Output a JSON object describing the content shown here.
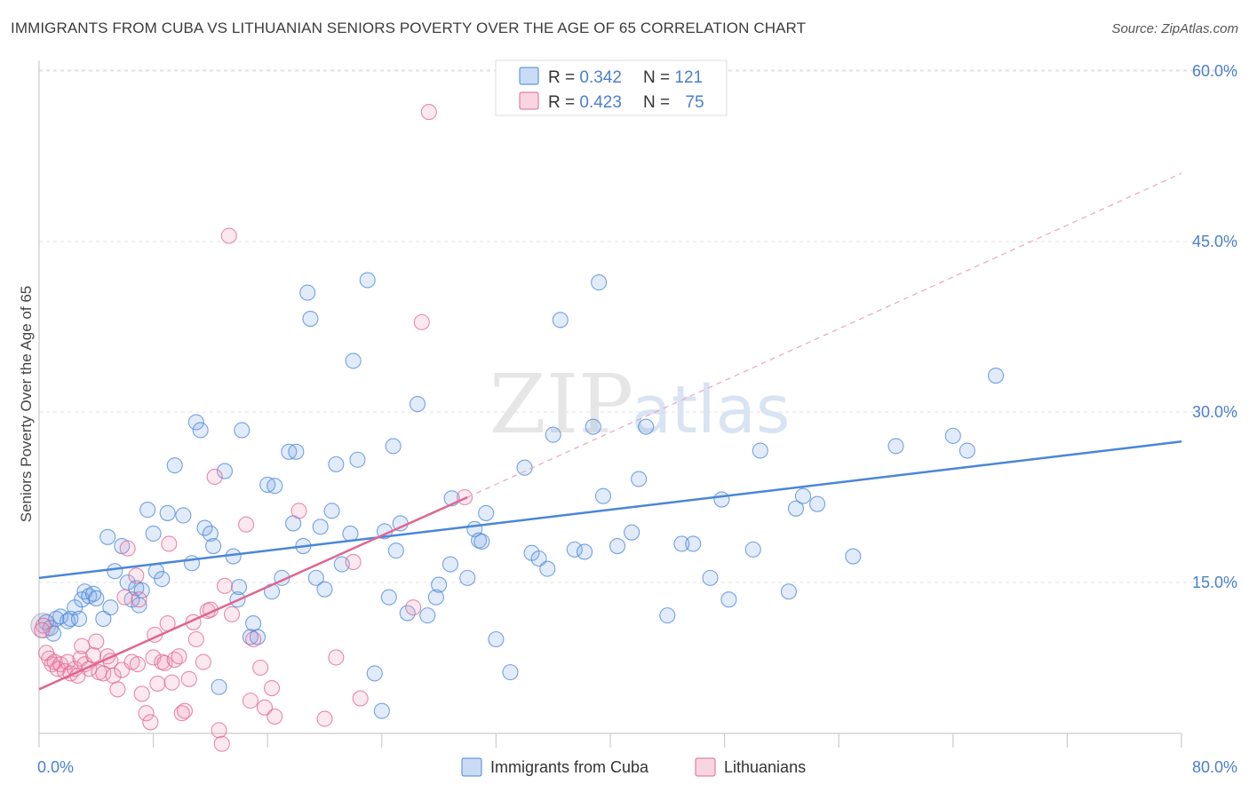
{
  "title": "IMMIGRANTS FROM CUBA VS LITHUANIAN SENIORS POVERTY OVER THE AGE OF 65 CORRELATION CHART",
  "source": "Source: ZipAtlas.com",
  "watermark": {
    "zip": "ZIP",
    "atlas": "atlas"
  },
  "colors": {
    "blue": "#4a86d8",
    "blue_fill": "rgba(120,165,230,0.22)",
    "pink": "#e0668f",
    "pink_fill": "rgba(240,150,180,0.22)",
    "axis_label": "#4a7fd0"
  },
  "legend": {
    "rows": [
      {
        "r_label": "R = ",
        "r_value": "0.342",
        "n_label": "N = ",
        "n_value": "121"
      },
      {
        "r_label": "R = ",
        "r_value": "0.423",
        "n_label": "N = ",
        "n_value": "75"
      }
    ]
  },
  "chart_data": {
    "type": "scatter",
    "title": "IMMIGRANTS FROM CUBA VS LITHUANIAN SENIORS POVERTY OVER THE AGE OF 65 CORRELATION CHART",
    "xlabel": "",
    "ylabel": "Seniors Poverty Over the Age of 65",
    "xlim": [
      0,
      80
    ],
    "ylim": [
      0,
      63
    ],
    "x_tick_labels": [
      "0.0%",
      "80.0%"
    ],
    "y_ticks": [
      15,
      30,
      45,
      60
    ],
    "y_tick_labels": [
      "15.0%",
      "30.0%",
      "45.0%",
      "60.0%"
    ],
    "grid": true,
    "legend_position": "top-center",
    "series": [
      {
        "name": "Immigrants from Cuba",
        "color": "#4a86d8",
        "r": 0.342,
        "n": 121,
        "trend": {
          "x": [
            0,
            80
          ],
          "y": [
            15.4,
            27.4
          ]
        },
        "points": [
          [
            0.5,
            11.5
          ],
          [
            0.8,
            11.0
          ],
          [
            1.0,
            10.5
          ],
          [
            1.2,
            11.8
          ],
          [
            1.5,
            12.0
          ],
          [
            2.0,
            11.6
          ],
          [
            2.2,
            11.8
          ],
          [
            2.5,
            12.8
          ],
          [
            2.8,
            11.8
          ],
          [
            3.0,
            13.5
          ],
          [
            3.2,
            14.2
          ],
          [
            3.5,
            13.8
          ],
          [
            3.8,
            14.0
          ],
          [
            4.0,
            13.6
          ],
          [
            4.5,
            11.8
          ],
          [
            4.8,
            19.0
          ],
          [
            5.0,
            12.8
          ],
          [
            5.3,
            16.0
          ],
          [
            5.8,
            18.2
          ],
          [
            6.2,
            15.0
          ],
          [
            6.5,
            13.5
          ],
          [
            6.8,
            14.5
          ],
          [
            7.0,
            13.0
          ],
          [
            7.2,
            14.3
          ],
          [
            7.6,
            21.4
          ],
          [
            8.0,
            19.3
          ],
          [
            8.2,
            16.0
          ],
          [
            8.6,
            15.3
          ],
          [
            9.0,
            21.1
          ],
          [
            9.5,
            25.3
          ],
          [
            10.1,
            20.9
          ],
          [
            10.7,
            16.7
          ],
          [
            11.0,
            29.1
          ],
          [
            11.3,
            28.4
          ],
          [
            11.6,
            19.8
          ],
          [
            12.0,
            19.3
          ],
          [
            12.2,
            18.2
          ],
          [
            12.6,
            5.8
          ],
          [
            13.0,
            24.8
          ],
          [
            13.6,
            17.3
          ],
          [
            13.9,
            13.5
          ],
          [
            14.0,
            14.6
          ],
          [
            14.2,
            28.4
          ],
          [
            14.8,
            10.2
          ],
          [
            15.0,
            11.4
          ],
          [
            15.3,
            10.2
          ],
          [
            16.0,
            23.6
          ],
          [
            16.3,
            14.2
          ],
          [
            16.5,
            23.5
          ],
          [
            17.0,
            15.4
          ],
          [
            17.5,
            26.5
          ],
          [
            17.8,
            20.2
          ],
          [
            18.0,
            26.5
          ],
          [
            18.5,
            18.2
          ],
          [
            18.8,
            40.5
          ],
          [
            19.0,
            38.2
          ],
          [
            19.4,
            15.4
          ],
          [
            19.7,
            19.9
          ],
          [
            20.0,
            14.4
          ],
          [
            20.5,
            21.3
          ],
          [
            20.8,
            25.4
          ],
          [
            21.2,
            16.6
          ],
          [
            21.8,
            19.3
          ],
          [
            22.0,
            34.5
          ],
          [
            22.3,
            25.8
          ],
          [
            23.0,
            41.6
          ],
          [
            23.5,
            7.0
          ],
          [
            24.0,
            3.7
          ],
          [
            24.2,
            19.5
          ],
          [
            24.5,
            13.7
          ],
          [
            24.8,
            27.0
          ],
          [
            25.0,
            17.8
          ],
          [
            25.3,
            20.2
          ],
          [
            25.8,
            12.3
          ],
          [
            26.5,
            30.7
          ],
          [
            27.2,
            12.1
          ],
          [
            27.8,
            13.7
          ],
          [
            28.0,
            14.8
          ],
          [
            28.8,
            16.6
          ],
          [
            28.9,
            22.4
          ],
          [
            30.0,
            15.4
          ],
          [
            30.5,
            19.7
          ],
          [
            30.8,
            18.7
          ],
          [
            31.0,
            18.6
          ],
          [
            31.3,
            21.1
          ],
          [
            32.0,
            10.0
          ],
          [
            33.0,
            7.1
          ],
          [
            34.0,
            25.1
          ],
          [
            34.5,
            17.6
          ],
          [
            35.0,
            17.1
          ],
          [
            35.6,
            16.2
          ],
          [
            36.0,
            28.0
          ],
          [
            36.5,
            38.1
          ],
          [
            37.5,
            17.9
          ],
          [
            38.2,
            17.7
          ],
          [
            38.8,
            28.7
          ],
          [
            39.2,
            41.4
          ],
          [
            39.5,
            22.6
          ],
          [
            40.5,
            18.2
          ],
          [
            41.5,
            19.4
          ],
          [
            42.0,
            24.1
          ],
          [
            42.5,
            28.7
          ],
          [
            44.0,
            12.1
          ],
          [
            45.0,
            18.4
          ],
          [
            45.8,
            18.4
          ],
          [
            47.0,
            15.4
          ],
          [
            47.8,
            22.3
          ],
          [
            48.3,
            13.5
          ],
          [
            50.0,
            17.9
          ],
          [
            50.5,
            26.6
          ],
          [
            52.5,
            14.2
          ],
          [
            53.0,
            21.5
          ],
          [
            53.5,
            22.6
          ],
          [
            54.5,
            21.9
          ],
          [
            57.0,
            17.3
          ],
          [
            60.0,
            27.0
          ],
          [
            64.0,
            27.9
          ],
          [
            65.0,
            26.6
          ],
          [
            67.0,
            33.2
          ]
        ]
      },
      {
        "name": "Lithuanians",
        "color": "#e0668f",
        "r": 0.423,
        "n": 75,
        "trend": {
          "x": [
            0,
            30
          ],
          "y": [
            5.6,
            22.5
          ]
        },
        "trend_extension": {
          "x": [
            30,
            80
          ],
          "y": [
            22.5,
            51.0
          ]
        },
        "points": [
          [
            0.3,
            11.2
          ],
          [
            0.5,
            8.8
          ],
          [
            0.7,
            8.3
          ],
          [
            0.9,
            7.8
          ],
          [
            1.1,
            8.0
          ],
          [
            1.3,
            7.4
          ],
          [
            1.5,
            7.8
          ],
          [
            1.8,
            7.2
          ],
          [
            2.0,
            8.0
          ],
          [
            2.2,
            7.0
          ],
          [
            2.5,
            7.4
          ],
          [
            2.7,
            6.8
          ],
          [
            2.9,
            8.3
          ],
          [
            3.0,
            9.4
          ],
          [
            3.2,
            7.8
          ],
          [
            3.5,
            7.4
          ],
          [
            3.8,
            8.6
          ],
          [
            4.0,
            9.8
          ],
          [
            4.2,
            7.1
          ],
          [
            4.5,
            7.0
          ],
          [
            4.8,
            8.5
          ],
          [
            5.0,
            8.1
          ],
          [
            5.2,
            6.8
          ],
          [
            5.5,
            5.6
          ],
          [
            5.8,
            7.3
          ],
          [
            6.0,
            13.7
          ],
          [
            6.2,
            18.0
          ],
          [
            6.5,
            8.0
          ],
          [
            6.8,
            15.6
          ],
          [
            6.9,
            7.8
          ],
          [
            7.0,
            13.5
          ],
          [
            7.2,
            5.2
          ],
          [
            7.5,
            3.5
          ],
          [
            7.8,
            2.7
          ],
          [
            8.0,
            8.4
          ],
          [
            8.1,
            10.4
          ],
          [
            8.3,
            6.1
          ],
          [
            8.6,
            8.0
          ],
          [
            8.8,
            7.9
          ],
          [
            9.0,
            11.4
          ],
          [
            9.1,
            18.4
          ],
          [
            9.3,
            6.2
          ],
          [
            9.5,
            8.2
          ],
          [
            9.8,
            8.5
          ],
          [
            10.0,
            3.5
          ],
          [
            10.2,
            3.7
          ],
          [
            10.5,
            6.5
          ],
          [
            10.8,
            11.5
          ],
          [
            11.0,
            10.0
          ],
          [
            11.5,
            8.0
          ],
          [
            11.8,
            12.5
          ],
          [
            12.0,
            12.6
          ],
          [
            12.3,
            24.3
          ],
          [
            12.6,
            2.0
          ],
          [
            12.8,
            0.8
          ],
          [
            13.0,
            14.7
          ],
          [
            13.3,
            45.5
          ],
          [
            13.5,
            12.2
          ],
          [
            14.5,
            20.1
          ],
          [
            14.8,
            4.6
          ],
          [
            15.0,
            10.0
          ],
          [
            15.5,
            7.5
          ],
          [
            15.8,
            4.0
          ],
          [
            16.3,
            5.7
          ],
          [
            16.5,
            3.2
          ],
          [
            18.2,
            21.3
          ],
          [
            20.0,
            3.0
          ],
          [
            20.8,
            8.4
          ],
          [
            22.0,
            16.8
          ],
          [
            22.5,
            4.8
          ],
          [
            26.2,
            12.8
          ],
          [
            26.8,
            37.9
          ],
          [
            27.3,
            56.4
          ],
          [
            29.8,
            22.5
          ],
          [
            0.2,
            10.8
          ]
        ]
      }
    ]
  },
  "bottom_legend": {
    "items": [
      {
        "label": "Immigrants from Cuba"
      },
      {
        "label": "Lithuanians"
      }
    ]
  }
}
